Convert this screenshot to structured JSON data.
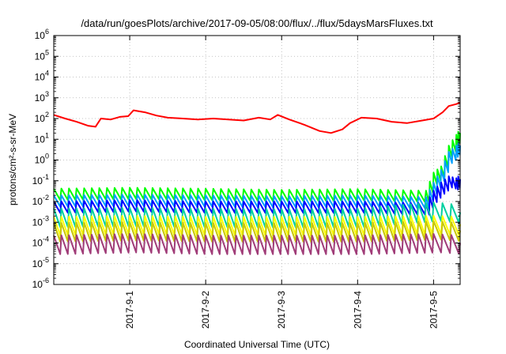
{
  "chart_data": {
    "type": "line",
    "title": "/data/run/goesPlots/archive/2017-09-05/08:00/flux/../flux/5daysMarsFluxes.txt",
    "xlabel": "Coordinated Universal Time (UTC)",
    "ylabel": "protons/cm²-s-sr-MeV",
    "yscale": "log",
    "ylim": [
      1e-06,
      1000000.0
    ],
    "xlim_days": [
      0.0,
      5.35
    ],
    "x_ticks": [
      "2017-9-1",
      "2017-9-2",
      "2017-9-3",
      "2017-9-4",
      "2017-9-5"
    ],
    "y_ticks": [
      "10-6",
      "10-5",
      "10-4",
      "10-3",
      "10-2",
      "10-1",
      "100",
      "101",
      "102",
      "103",
      "104",
      "105",
      "106"
    ],
    "grid": true,
    "series": [
      {
        "color": "#ff0000",
        "x": [
          0.0,
          0.15,
          0.3,
          0.45,
          0.55,
          0.62,
          0.75,
          0.87,
          0.98,
          1.05,
          1.2,
          1.35,
          1.5,
          1.7,
          1.9,
          2.1,
          2.3,
          2.5,
          2.7,
          2.85,
          2.95,
          3.1,
          3.3,
          3.5,
          3.65,
          3.8,
          3.9,
          4.05,
          4.25,
          4.45,
          4.65,
          4.85,
          5.0,
          5.12,
          5.2,
          5.3,
          5.35
        ],
        "values": [
          150,
          100,
          70,
          45,
          40,
          100,
          90,
          120,
          130,
          250,
          200,
          140,
          110,
          100,
          90,
          100,
          90,
          80,
          110,
          90,
          150,
          90,
          50,
          25,
          20,
          30,
          60,
          110,
          100,
          70,
          60,
          80,
          100,
          200,
          400,
          500,
          600
        ]
      },
      {
        "color": "#00ff00",
        "x": [
          0.0,
          1.0,
          2.0,
          3.0,
          4.0,
          4.9,
          5.0,
          5.1,
          5.2,
          5.3,
          5.35
        ],
        "values": [
          0.025,
          0.028,
          0.025,
          0.022,
          0.024,
          0.02,
          0.15,
          0.3,
          3,
          10,
          20
        ]
      },
      {
        "color": "#00a0ff",
        "x": [
          0.0,
          1.0,
          2.0,
          3.0,
          4.0,
          4.9,
          5.0,
          5.1,
          5.2,
          5.3,
          5.35
        ],
        "values": [
          0.012,
          0.013,
          0.012,
          0.011,
          0.012,
          0.01,
          0.05,
          0.2,
          1.5,
          3,
          5
        ]
      },
      {
        "color": "#0000ff",
        "x": [
          0.0,
          1.0,
          2.0,
          3.0,
          4.0,
          4.9,
          5.0,
          5.1,
          5.2,
          5.3,
          5.35
        ],
        "values": [
          0.006,
          0.007,
          0.006,
          0.006,
          0.006,
          0.005,
          0.02,
          0.05,
          0.1,
          0.08,
          0.12
        ]
      },
      {
        "color": "#00d0a0",
        "x": [
          0.0,
          1.0,
          2.0,
          3.0,
          4.0,
          5.0,
          5.35
        ],
        "values": [
          0.002,
          0.0022,
          0.002,
          0.0019,
          0.002,
          0.004,
          0.003
        ]
      },
      {
        "color": "#ffff00",
        "x": [
          0.0,
          1.0,
          2.0,
          3.0,
          4.0,
          5.0,
          5.35
        ],
        "values": [
          0.0008,
          0.0009,
          0.0008,
          0.0008,
          0.0008,
          0.0009,
          0.0008
        ]
      },
      {
        "color": "#c8c800",
        "x": [
          0.0,
          1.0,
          2.0,
          3.0,
          4.0,
          5.0,
          5.35
        ],
        "values": [
          0.0004,
          0.00045,
          0.0004,
          0.0004,
          0.0004,
          0.0005,
          0.0004
        ]
      },
      {
        "color": "#a03c78",
        "x": [
          0.0,
          1.0,
          2.0,
          3.0,
          4.0,
          5.0,
          5.35
        ],
        "values": [
          0.0001,
          0.00012,
          0.0001,
          0.0001,
          0.0001,
          0.00012,
          0.0001
        ]
      }
    ]
  }
}
